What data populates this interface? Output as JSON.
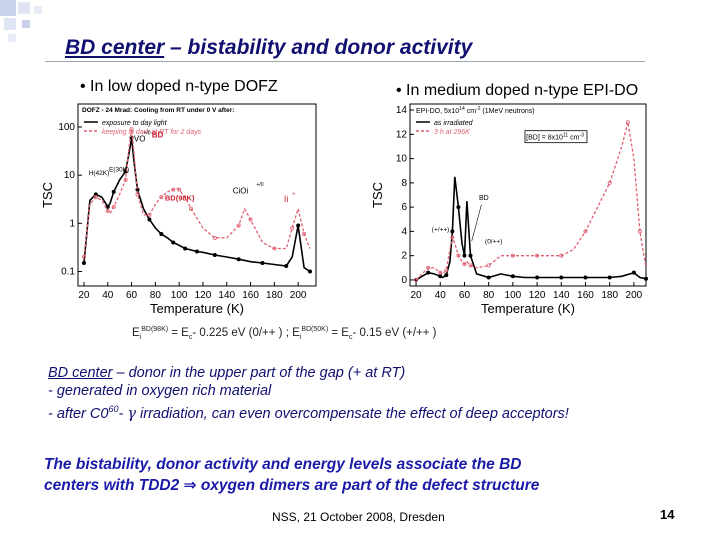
{
  "slide": {
    "title_bd": "BD center",
    "title_rest": " – bistability and donor activity",
    "bullet_left": "• In low doped n-type DOFZ",
    "bullet_right": "• In medium doped n-type EPI-DO",
    "energy_text": {
      "e1": "E",
      "e1_sub": "i",
      "e1_sup": "BD(98K)",
      "mid1": " = E",
      "c_sub": "c",
      "val1": "- 0.225 eV (0/++ ) ; E",
      "e2_sub": "i",
      "e2_sup": "BD(50K)",
      "mid2": " = E",
      "c2_sub": "c",
      "val2": "- 0.15 eV (+/++ )"
    },
    "bd_line1_bd": "BD center",
    "bd_line1_rest": " – donor in the upper part of the gap (+ at RT)",
    "bd_line2": "- generated in oxygen rich material",
    "bd_line3_a": "- after C0",
    "bd_line3_sup": "60",
    "bd_line3_b": "- ",
    "bd_line3_gamma": "γ",
    "bd_line3_c": " irradiation, can even overcompensate the effect of deep acceptors!",
    "concl_line1": "The bistability, donor activity and energy levels associate the BD",
    "concl_line2_a": "centers with TDD2 ",
    "concl_arrow": "⇒",
    "concl_line2_b": " oxygen dimers are part of the defect structure",
    "footer": "NSS, 21 October 2008, Dresden",
    "page_number": "14"
  },
  "chart_data": [
    {
      "type": "line",
      "title": "DOFZ - 24 Mrad: Cooling from RT under 0 V after:",
      "xlabel": "Temperature (K)",
      "ylabel": "TSC",
      "xlim": [
        15,
        215
      ],
      "yscale": "log",
      "ylim": [
        0.05,
        300
      ],
      "x_ticks": [
        20,
        40,
        60,
        80,
        100,
        120,
        140,
        160,
        180,
        200
      ],
      "y_ticks": [
        0.1,
        1,
        10,
        100
      ],
      "y_tick_labels": [
        "0.1",
        "1",
        "10",
        "100"
      ],
      "legend": "top-left",
      "series": [
        {
          "name": "exposure to day light",
          "color": "#000000",
          "x": [
            20,
            25,
            30,
            35,
            40,
            42,
            45,
            50,
            55,
            58,
            60,
            62,
            65,
            70,
            75,
            80,
            85,
            90,
            95,
            100,
            105,
            110,
            115,
            120,
            130,
            140,
            150,
            160,
            170,
            180,
            190,
            195,
            200,
            205,
            210
          ],
          "y": [
            0.15,
            3,
            4,
            3.5,
            2.2,
            2.6,
            4.5,
            8,
            12,
            30,
            60,
            20,
            5,
            2,
            1.2,
            0.8,
            0.6,
            0.5,
            0.4,
            0.35,
            0.3,
            0.28,
            0.26,
            0.25,
            0.22,
            0.2,
            0.18,
            0.16,
            0.15,
            0.14,
            0.13,
            0.2,
            0.9,
            0.12,
            0.1
          ]
        },
        {
          "name": "keeping in dark at RT for 2 days",
          "color": "#e06070",
          "x": [
            20,
            25,
            30,
            35,
            40,
            42,
            45,
            50,
            55,
            58,
            60,
            62,
            65,
            70,
            75,
            80,
            85,
            90,
            95,
            98,
            100,
            105,
            110,
            120,
            130,
            140,
            150,
            155,
            160,
            170,
            180,
            190,
            195,
            200,
            205,
            210
          ],
          "y": [
            0.2,
            2.5,
            3.5,
            3,
            1.8,
            1.6,
            2.2,
            4,
            8,
            40,
            90,
            30,
            4,
            1.5,
            1.5,
            2.5,
            3.5,
            4.5,
            5,
            5.3,
            5,
            3.5,
            2,
            0.8,
            0.5,
            0.5,
            0.9,
            2,
            1.2,
            0.4,
            0.3,
            0.3,
            0.8,
            2,
            0.6,
            0.3
          ]
        }
      ],
      "annotations": [
        "VO",
        "+/0",
        "BD",
        "H(42K)",
        "E(30K)",
        "BD(98K)",
        "CiOi",
        "+/0",
        "Ii",
        "+"
      ]
    },
    {
      "type": "line",
      "title": "EPI-DO, 5x10",
      "title_sup": "14",
      "title_rest": " cm",
      "title_sup2": "-2",
      "title_rest2": " (1MeV neutrons)",
      "xlabel": "Temperature (K)",
      "ylabel": "TSC",
      "xlim": [
        15,
        210
      ],
      "ylim": [
        -0.5,
        14.5
      ],
      "x_ticks": [
        20,
        40,
        60,
        80,
        100,
        120,
        140,
        160,
        180,
        200
      ],
      "y_ticks": [
        0,
        2,
        4,
        6,
        8,
        10,
        12,
        14
      ],
      "legend": "top-left",
      "inset_label": "[BD] = 8x10",
      "inset_sup": "11",
      "inset_rest": " cm",
      "inset_sup2": "-3",
      "series": [
        {
          "name": "as irradiated",
          "color": "#000000",
          "x": [
            20,
            25,
            30,
            35,
            40,
            42,
            45,
            48,
            50,
            52,
            55,
            58,
            60,
            62,
            65,
            70,
            80,
            90,
            100,
            110,
            120,
            130,
            140,
            150,
            160,
            170,
            180,
            190,
            200,
            205,
            210
          ],
          "y": [
            0,
            0.3,
            0.6,
            0.5,
            0.3,
            0.2,
            0.4,
            1.5,
            4,
            8.5,
            6,
            3,
            2,
            6.5,
            2,
            0.5,
            0.2,
            0.5,
            0.3,
            0.2,
            0.2,
            0.2,
            0.2,
            0.2,
            0.2,
            0.2,
            0.2,
            0.3,
            0.6,
            0.2,
            0.1
          ]
        },
        {
          "name": "3 h at 296K",
          "color": "#e06070",
          "x": [
            20,
            25,
            30,
            35,
            40,
            42,
            45,
            48,
            50,
            52,
            55,
            58,
            60,
            62,
            65,
            70,
            80,
            90,
            100,
            110,
            120,
            130,
            140,
            150,
            160,
            170,
            180,
            190,
            195,
            200,
            205,
            210
          ],
          "y": [
            0,
            0.5,
            1,
            1,
            0.6,
            0.5,
            0.8,
            2.5,
            3.5,
            3,
            2,
            1.5,
            1.3,
            1.5,
            1.2,
            1,
            1.2,
            2,
            2,
            2,
            2,
            2,
            2,
            2.5,
            4,
            6,
            8,
            11,
            13,
            10,
            4,
            1
          ]
        }
      ],
      "annotations": [
        "BD",
        "(+/++)",
        "(0/++)"
      ]
    }
  ]
}
